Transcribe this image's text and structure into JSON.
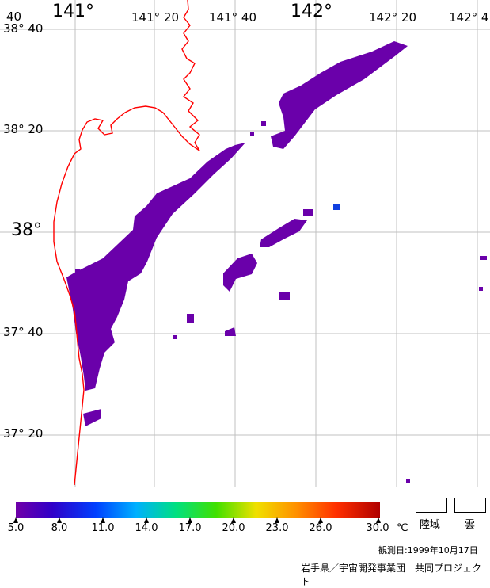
{
  "map": {
    "lon_labels": [
      {
        "text": "141°",
        "size": "big"
      },
      {
        "text": "141° 20",
        "size": "sm"
      },
      {
        "text": "141° 40",
        "size": "sm"
      },
      {
        "text": "142°",
        "size": "big"
      },
      {
        "text": "142° 20",
        "size": "sm"
      },
      {
        "text": "142° 4",
        "size": "sm"
      }
    ],
    "lat_labels": [
      {
        "text": "38° 40",
        "size": "sm"
      },
      {
        "text": "38° 20",
        "size": "sm"
      },
      {
        "text": "38°",
        "size": "big"
      },
      {
        "text": "37° 40",
        "size": "sm"
      },
      {
        "text": "37° 20",
        "size": "sm"
      }
    ],
    "corner_label": "40",
    "colors": {
      "coastline": "#ff0000",
      "grid": "#c0c0c0",
      "sst_patch": "#6a00aa",
      "sst_dot": "#1040e0"
    }
  },
  "legend": {
    "ticks": [
      "5.0",
      "8.0",
      "11.0",
      "14.0",
      "17.0",
      "20.0",
      "23.0",
      "26.0",
      "30.0"
    ],
    "unit": "℃",
    "land_label": "陸域",
    "cloud_label": "雲"
  },
  "footer": {
    "observation": "観測日:1999年10月17日",
    "credit": "岩手県／宇宙開発事業団　共同プロジェクト"
  }
}
